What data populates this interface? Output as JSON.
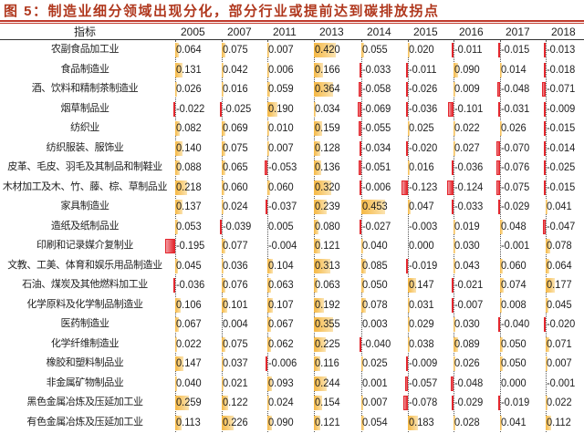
{
  "title": "图 5：制造业细分领域出现分化，部分行业或提前达到碳排放拐点",
  "colors": {
    "title": "#b0381e",
    "positive_bar": "#f5b844",
    "negative_bar": "#e3262d"
  },
  "table": {
    "header_label": "指标",
    "years": [
      "2005",
      "2007",
      "2011",
      "2013",
      "2014",
      "2015",
      "2016",
      "2017",
      "2018"
    ],
    "rows": [
      {
        "label": "农副食品加工业",
        "values": [
          "0.064",
          "0.075",
          "0.007",
          "0.420",
          "0.055",
          "0.020",
          "-0.011",
          "-0.015",
          "-0.013"
        ]
      },
      {
        "label": "食品制造业",
        "values": [
          "0.131",
          "0.042",
          "0.006",
          "0.166",
          "-0.033",
          "-0.011",
          "0.090",
          "0.014",
          "-0.018"
        ]
      },
      {
        "label": "酒、饮料和精制茶制造业",
        "values": [
          "0.026",
          "0.016",
          "0.059",
          "0.364",
          "-0.058",
          "-0.026",
          "0.009",
          "-0.048",
          "-0.071"
        ]
      },
      {
        "label": "烟草制品业",
        "values": [
          "-0.022",
          "-0.025",
          "0.190",
          "0.034",
          "-0.069",
          "-0.036",
          "-0.101",
          "-0.031",
          "-0.009"
        ]
      },
      {
        "label": "纺织业",
        "values": [
          "0.082",
          "0.069",
          "0.010",
          "0.159",
          "-0.055",
          "0.025",
          "0.022",
          "0.026",
          "-0.015"
        ]
      },
      {
        "label": "纺织服装、服饰业",
        "values": [
          "0.140",
          "0.075",
          "0.007",
          "0.128",
          "-0.034",
          "-0.020",
          "0.027",
          "-0.070",
          "-0.014"
        ]
      },
      {
        "label": "皮革、毛皮、羽毛及其制品和制鞋业",
        "values": [
          "0.088",
          "0.065",
          "-0.053",
          "0.136",
          "-0.051",
          "0.016",
          "-0.036",
          "-0.076",
          "-0.025"
        ]
      },
      {
        "label": "木材加工及木、竹、藤、棕、草制品业",
        "values": [
          "0.218",
          "0.060",
          "0.060",
          "0.320",
          "-0.006",
          "-0.123",
          "-0.124",
          "-0.075",
          "-0.015"
        ]
      },
      {
        "label": "家具制造业",
        "values": [
          "0.137",
          "0.024",
          "-0.037",
          "0.239",
          "0.453",
          "0.047",
          "-0.033",
          "-0.029",
          "0.041"
        ]
      },
      {
        "label": "造纸及纸制品业",
        "values": [
          "0.053",
          "-0.039",
          "0.005",
          "0.080",
          "-0.027",
          "-0.003",
          "0.019",
          "0.048",
          "-0.047"
        ]
      },
      {
        "label": "印刷和记录媒介复制业",
        "values": [
          "-0.195",
          "0.077",
          "-0.004",
          "0.121",
          "0.040",
          "0.000",
          "0.030",
          "-0.001",
          "0.078"
        ]
      },
      {
        "label": "文教、工美、体育和娱乐用品制造业",
        "values": [
          "0.045",
          "0.036",
          "0.104",
          "0.313",
          "0.085",
          "-0.019",
          "0.043",
          "0.060",
          "0.064"
        ]
      },
      {
        "label": "石油、煤炭及其他燃料加工业",
        "values": [
          "-0.036",
          "0.076",
          "0.063",
          "0.063",
          "0.050",
          "0.147",
          "-0.021",
          "0.074",
          "0.177"
        ]
      },
      {
        "label": "化学原料及化学制品制造业",
        "values": [
          "0.106",
          "0.101",
          "0.107",
          "0.192",
          "0.078",
          "0.031",
          "-0.007",
          "0.008",
          "0.045"
        ]
      },
      {
        "label": "医药制造业",
        "values": [
          "0.067",
          "0.004",
          "0.067",
          "0.355",
          "0.003",
          "0.029",
          "0.030",
          "-0.040",
          "-0.020"
        ]
      },
      {
        "label": "化学纤维制造业",
        "values": [
          "0.022",
          "0.075",
          "0.062",
          "0.225",
          "-0.040",
          "0.038",
          "0.089",
          "0.050",
          "0.071"
        ]
      },
      {
        "label": "橡胶和塑料制品业",
        "values": [
          "0.147",
          "0.037",
          "-0.006",
          "0.116",
          "0.025",
          "-0.009",
          "0.026",
          "0.050",
          "0.007"
        ]
      },
      {
        "label": "非金属矿物制品业",
        "values": [
          "0.040",
          "0.021",
          "0.093",
          "0.244",
          "0.001",
          "-0.057",
          "-0.048",
          "0.000",
          "-0.001"
        ]
      },
      {
        "label": "黑色金属冶炼及压延加工业",
        "values": [
          "0.259",
          "0.122",
          "0.024",
          "0.154",
          "0.007",
          "-0.078",
          "-0.029",
          "-0.019",
          "0.022"
        ]
      },
      {
        "label": "有色金属冶炼及压延加工业",
        "values": [
          "0.113",
          "0.226",
          "0.090",
          "0.121",
          "0.054",
          "0.183",
          "0.028",
          "0.041",
          "0.112"
        ]
      }
    ]
  }
}
